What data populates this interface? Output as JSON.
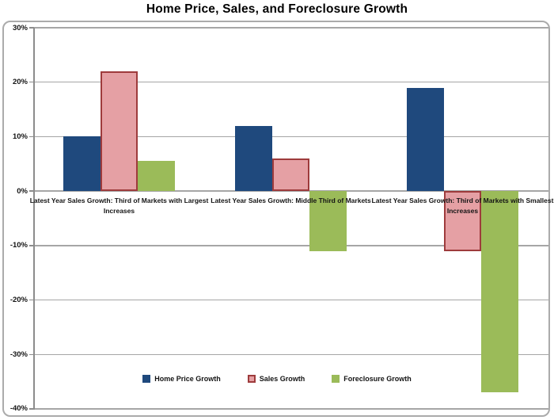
{
  "title": "Home Price, Sales, and Foreclosure Growth",
  "chart_data": {
    "type": "bar",
    "title": "Home Price, Sales, and Foreclosure Growth",
    "categories": [
      "Latest Year Sales Growth: Third of Markets with Largest Increases",
      "Latest Year Sales Growth: Middle Third of Markets",
      "Latest Year Sales Growth: Third of Markets with Smallest Increases"
    ],
    "series": [
      {
        "name": "Home Price Growth",
        "values": [
          10,
          12,
          19
        ],
        "fill": "#1F497D",
        "border": "#1F497D"
      },
      {
        "name": "Sales Growth",
        "values": [
          22,
          6,
          -11
        ],
        "fill": "#E5A0A4",
        "border": "#9E3B3C"
      },
      {
        "name": "Foreclosure Growth",
        "values": [
          5.5,
          -11,
          -37
        ],
        "fill": "#9BBB59",
        "border": "#9BBB59"
      }
    ],
    "y_axis": {
      "unit": "percent",
      "min": -40,
      "max": 30,
      "step": 10,
      "tick_labels": [
        "30%",
        "20%",
        "10%",
        "0%",
        "-10%",
        "-20%",
        "-30%",
        "-40%"
      ]
    },
    "grid": true,
    "legend_position": "bottom-inside",
    "colors": {
      "gridline": "#a6a6a6",
      "axis": "#8c8c8c",
      "chart_border": "#ababab",
      "label_text": "#141414"
    }
  }
}
